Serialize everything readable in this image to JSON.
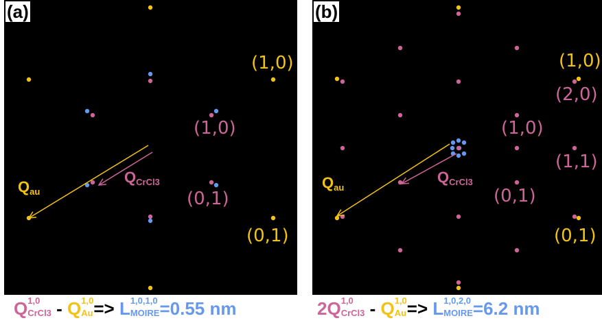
{
  "colors": {
    "gold": "#f2c316",
    "pink": "#cc6699",
    "blue": "#6699ee",
    "black": "#000000",
    "white": "#ffffff"
  },
  "panel_a": {
    "label": "(a)",
    "miller": {
      "au_10": "(1,0)",
      "au_01": "(0,1)",
      "crcl3_10": "(1,0)",
      "crcl3_01": "(0,1)"
    },
    "q_au": {
      "main": "Q",
      "sub": "au"
    },
    "q_crcl3": {
      "main": "Q",
      "sub": "CrCl3"
    }
  },
  "panel_b": {
    "label": "(b)",
    "miller": {
      "au_10": "(1,0)",
      "au_01": "(0,1)",
      "crcl3_20": "(2,0)",
      "crcl3_10": "(1,0)",
      "crcl3_11": "(1,1)",
      "crcl3_01": "(0,1)"
    },
    "q_au": {
      "main": "Q",
      "sub": "au"
    },
    "q_crcl3": {
      "main": "Q",
      "sub": "CrCl3"
    }
  },
  "formula_a": {
    "q1": "Q",
    "q1_sup": "1,0",
    "q1_sub": "CrCl3",
    "minus": " - ",
    "q2": "Q",
    "q2_sup": "1,0",
    "q2_sub": "Au",
    "arrow": "=> ",
    "l": "L",
    "l_sup": "1,0,1,0",
    "l_sub": "MOIRE",
    "value": "=0.55 nm"
  },
  "formula_b": {
    "q1": "2Q",
    "q1_sup": "1,0",
    "q1_sub": "CrCl3",
    "minus": " - ",
    "q2": "Q",
    "q2_sup": "1,0",
    "q2_sub": "Au",
    "arrow": "=> ",
    "l": "L",
    "l_sup": "1,0,2,0",
    "l_sub": "MOIRE",
    "value": "=6.2 nm"
  }
}
